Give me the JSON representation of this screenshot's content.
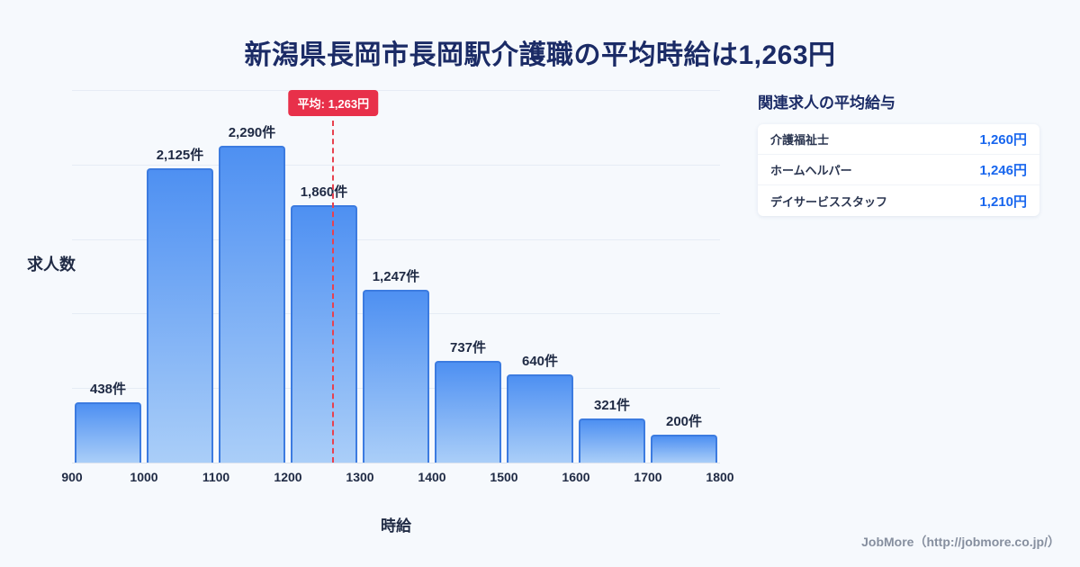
{
  "page": {
    "title": "新潟県長岡市長岡駅介護職の平均時給は1,263円",
    "footer": "JobMore（http://jobmore.co.jp/）"
  },
  "chart_data": {
    "type": "bar",
    "title": "新潟県長岡市長岡駅介護職の平均時給は1,263円",
    "xlabel": "時給",
    "ylabel": "求人数",
    "bin_edges": [
      900,
      1000,
      1100,
      1200,
      1300,
      1400,
      1500,
      1600,
      1700,
      1800
    ],
    "categories": [
      "900-1000",
      "1000-1100",
      "1100-1200",
      "1200-1300",
      "1300-1400",
      "1400-1500",
      "1500-1600",
      "1600-1700",
      "1700-1800"
    ],
    "values": [
      438,
      2125,
      2290,
      1860,
      1247,
      737,
      640,
      321,
      200
    ],
    "bar_labels": [
      "438件",
      "2,125件",
      "2,290件",
      "1,860件",
      "1,247件",
      "737件",
      "640件",
      "321件",
      "200件"
    ],
    "ylim": [
      0,
      2700
    ],
    "grid": true,
    "legend": "none",
    "average": {
      "value": 1263,
      "label": "平均: 1,263円"
    },
    "colors": {
      "bar_gradient_top": "#4e90f2",
      "bar_gradient_bottom": "#aacef8",
      "bar_border": "#3c7be0",
      "average_line": "#e8414f",
      "average_badge_bg": "#e8304a",
      "title_navy": "#1b2b66",
      "value_blue": "#1866ee",
      "background": "#f6f9fd"
    }
  },
  "side_panel": {
    "title": "関連求人の平均給与",
    "rows": [
      {
        "label": "介護福祉士",
        "value": "1,260円"
      },
      {
        "label": "ホームヘルパー",
        "value": "1,246円"
      },
      {
        "label": "デイサービススタッフ",
        "value": "1,210円"
      }
    ]
  }
}
